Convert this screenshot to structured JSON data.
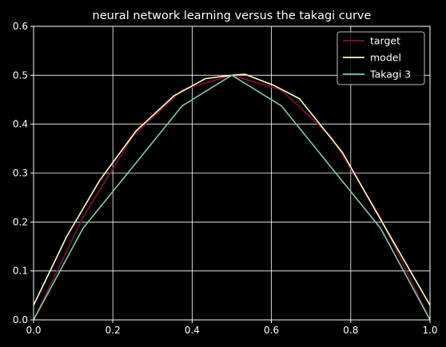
{
  "chart_data": {
    "type": "line",
    "title": "neural network learning versus the takagi curve",
    "xlabel": "",
    "ylabel": "",
    "xlim": [
      0,
      1
    ],
    "ylim": [
      0,
      0.6
    ],
    "grid": true,
    "legend_position": "top-right",
    "xticks": [
      "0.0",
      "0.2",
      "0.4",
      "0.6",
      "0.8",
      "1.0"
    ],
    "yticks": [
      "0.0",
      "0.1",
      "0.2",
      "0.3",
      "0.4",
      "0.5",
      "0.6"
    ],
    "series": [
      {
        "name": "target",
        "color": "#8b0a3a",
        "points": [
          [
            0.0,
            0.0
          ],
          [
            0.125,
            0.21
          ],
          [
            0.25,
            0.375
          ],
          [
            0.375,
            0.47
          ],
          [
            0.5,
            0.5
          ],
          [
            0.625,
            0.47
          ],
          [
            0.75,
            0.375
          ],
          [
            0.875,
            0.21
          ],
          [
            1.0,
            0.0
          ]
        ]
      },
      {
        "name": "model",
        "color": "#ffffc0",
        "points": [
          [
            0.0,
            0.03
          ],
          [
            0.0833,
            0.17
          ],
          [
            0.1667,
            0.285
          ],
          [
            0.2583,
            0.386
          ],
          [
            0.3542,
            0.458
          ],
          [
            0.4333,
            0.493
          ],
          [
            0.5,
            0.5
          ],
          [
            0.5333,
            0.502
          ],
          [
            0.6042,
            0.48
          ],
          [
            0.6708,
            0.452
          ],
          [
            0.7792,
            0.342
          ],
          [
            0.8875,
            0.188
          ],
          [
            1.0,
            0.03
          ]
        ]
      },
      {
        "name": "Takagi 3",
        "color": "#7fcca0",
        "points": [
          [
            0.0,
            0.0
          ],
          [
            0.125,
            0.1875
          ],
          [
            0.25,
            0.3125
          ],
          [
            0.375,
            0.4375
          ],
          [
            0.5,
            0.5
          ],
          [
            0.625,
            0.4375
          ],
          [
            0.75,
            0.3125
          ],
          [
            0.875,
            0.1875
          ],
          [
            1.0,
            0.0
          ]
        ]
      }
    ]
  }
}
